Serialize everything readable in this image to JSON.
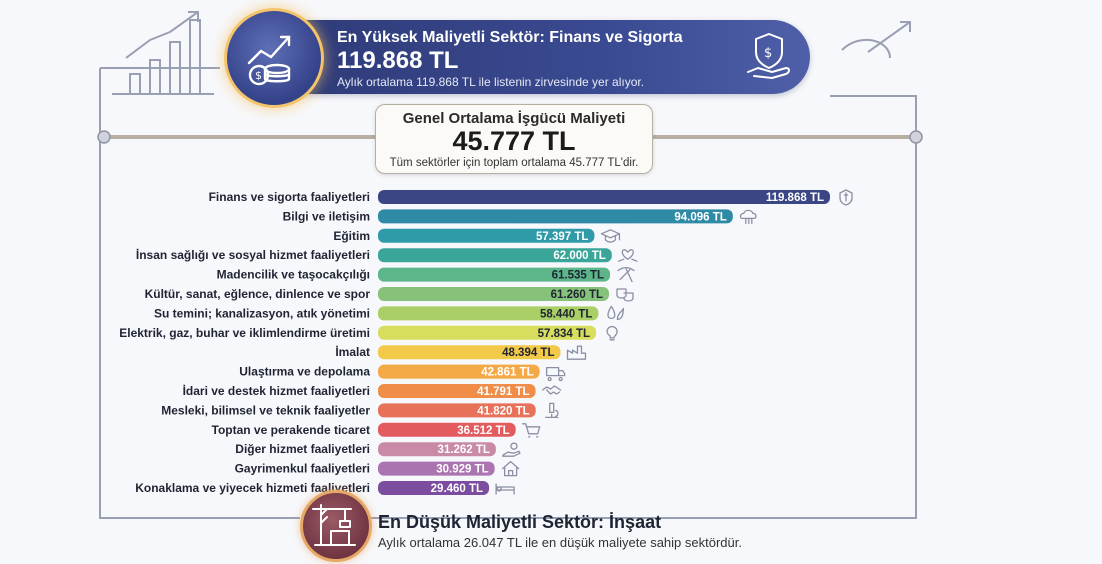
{
  "highest": {
    "title": "En Yüksek Maliyetli Sektör: Finans ve Sigorta",
    "value": "119.868 TL",
    "subtitle": "Aylık ortalama 119.868 TL ile listenin zirvesinde yer alıyor."
  },
  "average": {
    "title": "Genel Ortalama İşgücü Maliyeti",
    "value": "45.777 TL",
    "subtitle": "Tüm sektörler için toplam ortalama 45.777 TL'dir."
  },
  "lowest": {
    "title": "En Düşük Maliyetli Sektör: İnşaat",
    "subtitle": "Aylık ortalama 26.047 TL ile en düşük maliyete sahip sektördür."
  },
  "chart_data": {
    "type": "bar",
    "orientation": "horizontal",
    "unit": "TL",
    "categories": [
      "Finans ve sigorta faaliyetleri",
      "Bilgi ve iletişim",
      "Eğitim",
      "İnsan sağlığı ve sosyal hizmet faaliyetleri",
      "Madencilik ve taşocakçılığı",
      "Kültür, sanat, eğlence, dinlence ve spor",
      "Su temini; kanalizasyon, atık yönetimi",
      "Elektrik, gaz, buhar ve iklimlendirme üretimi",
      "İmalat",
      "Ulaştırma ve depolama",
      "İdari ve destek hizmet faaliyetleri",
      "Mesleki, bilimsel ve teknik faaliyetler",
      "Toptan ve perakende ticaret",
      "Diğer hizmet faaliyetleri",
      "Gayrimenkul faaliyetleri",
      "Konaklama ve yiyecek hizmeti faaliyetleri"
    ],
    "values": [
      119868,
      94096,
      57397,
      62000,
      61535,
      61260,
      58440,
      57834,
      48394,
      42861,
      41791,
      41820,
      36512,
      31262,
      30929,
      29460
    ],
    "value_labels": [
      "119.868 TL",
      "94.096 TL",
      "57.397 TL",
      "62.000 TL",
      "61.535 TL",
      "61.260 TL",
      "58.440 TL",
      "57.834 TL",
      "48.394 TL",
      "42.861 TL",
      "41.791 TL",
      "41.820 TL",
      "36.512 TL",
      "31.262 TL",
      "30.929 TL",
      "29.460 TL"
    ],
    "colors": [
      "#3b4685",
      "#2f8aa6",
      "#2f9aa8",
      "#3aa69a",
      "#5db68a",
      "#86c27a",
      "#a9cf66",
      "#d7dd5c",
      "#f3c94a",
      "#f4a947",
      "#ef8d49",
      "#e8715a",
      "#e35a5f",
      "#c98aa8",
      "#a974b0",
      "#7c4c9e"
    ],
    "icons": [
      "shield-dollar-icon",
      "cloud-network-icon",
      "graduation-cap-icon",
      "heart-hands-icon",
      "pickaxe-icon",
      "theater-masks-icon",
      "water-leaf-icon",
      "lightbulb-leaf-icon",
      "factory-icon",
      "truck-icon",
      "handshake-icon",
      "microscope-icon",
      "shopping-cart-icon",
      "hand-coins-icon",
      "house-icon",
      "bed-icon"
    ]
  },
  "icons": {
    "highest": "money-growth-icon",
    "highest_right": "shield-dollar-hand-icon",
    "lowest": "crane-building-icon"
  }
}
